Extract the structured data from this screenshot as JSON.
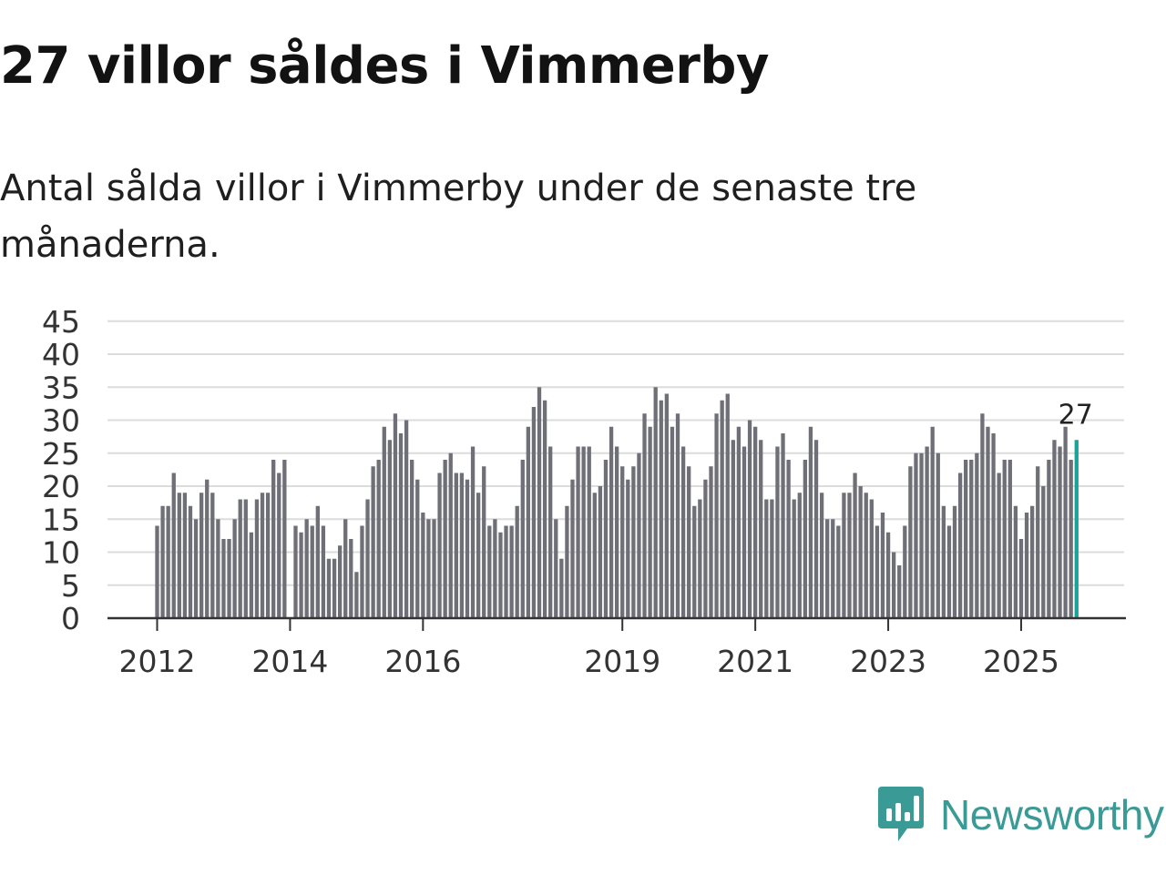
{
  "title": "27 villor såldes i Vimmerby",
  "subtitle": "Antal sålda villor i Vimmerby under de senaste tre månaderna.",
  "brand": {
    "name": "Newsworthy",
    "icon": "newsworthy-logo-icon",
    "color": "#3a9a96"
  },
  "colors": {
    "bar": "#6f6f77",
    "highlight": "#1aa399",
    "grid": "#dcdcdc",
    "axis": "#333333"
  },
  "chart_data": {
    "type": "bar",
    "title": "27 villor såldes i Vimmerby",
    "xlabel": "",
    "ylabel": "",
    "ylim": [
      0,
      45
    ],
    "yticks": [
      "0",
      "5",
      "10",
      "15",
      "20",
      "25",
      "30",
      "35",
      "40",
      "45"
    ],
    "xtick_labels": [
      {
        "label": "2012",
        "index": 0
      },
      {
        "label": "2014",
        "index": 24
      },
      {
        "label": "2016",
        "index": 48
      },
      {
        "label": "2019",
        "index": 84
      },
      {
        "label": "2021",
        "index": 108
      },
      {
        "label": "2023",
        "index": 132
      },
      {
        "label": "2025",
        "index": 156
      }
    ],
    "grid": true,
    "series": [
      {
        "name": "Antal sålda villor",
        "values": [
          14,
          17,
          17,
          22,
          19,
          19,
          17,
          15,
          19,
          21,
          19,
          15,
          12,
          12,
          15,
          18,
          18,
          13,
          18,
          19,
          19,
          24,
          22,
          24,
          0,
          14,
          13,
          15,
          14,
          17,
          14,
          9,
          9,
          11,
          15,
          12,
          7,
          14,
          18,
          23,
          24,
          29,
          27,
          31,
          28,
          30,
          24,
          21,
          16,
          15,
          15,
          22,
          24,
          25,
          22,
          22,
          21,
          26,
          19,
          23,
          14,
          15,
          13,
          14,
          14,
          17,
          24,
          29,
          32,
          35,
          33,
          26,
          15,
          9,
          17,
          21,
          26,
          26,
          26,
          19,
          20,
          24,
          29,
          26,
          23,
          21,
          23,
          25,
          31,
          29,
          35,
          33,
          34,
          29,
          31,
          26,
          23,
          17,
          18,
          21,
          23,
          31,
          33,
          34,
          27,
          29,
          26,
          30,
          29,
          27,
          18,
          18,
          26,
          28,
          24,
          18,
          19,
          24,
          29,
          27,
          19,
          15,
          15,
          14,
          19,
          19,
          22,
          20,
          19,
          18,
          14,
          16,
          13,
          10,
          8,
          14,
          23,
          25,
          25,
          26,
          29,
          25,
          17,
          14,
          17,
          22,
          24,
          24,
          25,
          31,
          29,
          28,
          22,
          24,
          24,
          17,
          12,
          16,
          17,
          23,
          20,
          24,
          27,
          26,
          29,
          24,
          27
        ]
      }
    ],
    "highlight": {
      "index": 166,
      "label": "27"
    }
  }
}
